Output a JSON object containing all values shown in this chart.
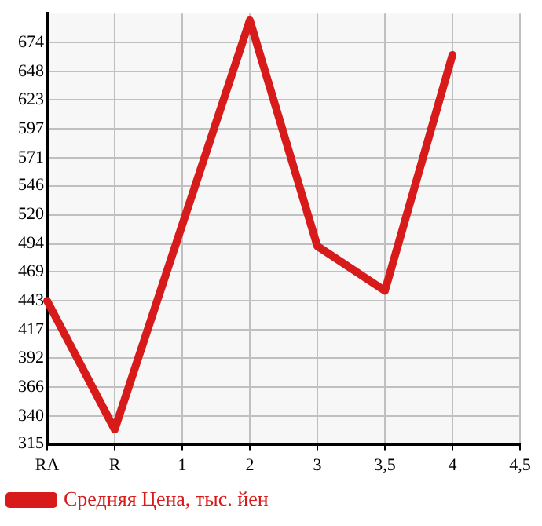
{
  "chart_data": {
    "type": "line",
    "categories": [
      "RA",
      "R",
      "1",
      "2",
      "3",
      "3,5",
      "4",
      "4,5"
    ],
    "series": [
      {
        "name": "Средняя Цена, тыс. йен",
        "color": "#d71a1a",
        "values": [
          443,
          328,
          511,
          694,
          492,
          452,
          663,
          null
        ]
      }
    ],
    "ylim": [
      315,
      700
    ],
    "yticks": [
      315,
      340,
      366,
      392,
      417,
      443,
      469,
      494,
      520,
      546,
      571,
      597,
      623,
      648,
      674
    ],
    "grid": true,
    "legend": "bottom",
    "marker": "none",
    "line_style": "solid"
  }
}
